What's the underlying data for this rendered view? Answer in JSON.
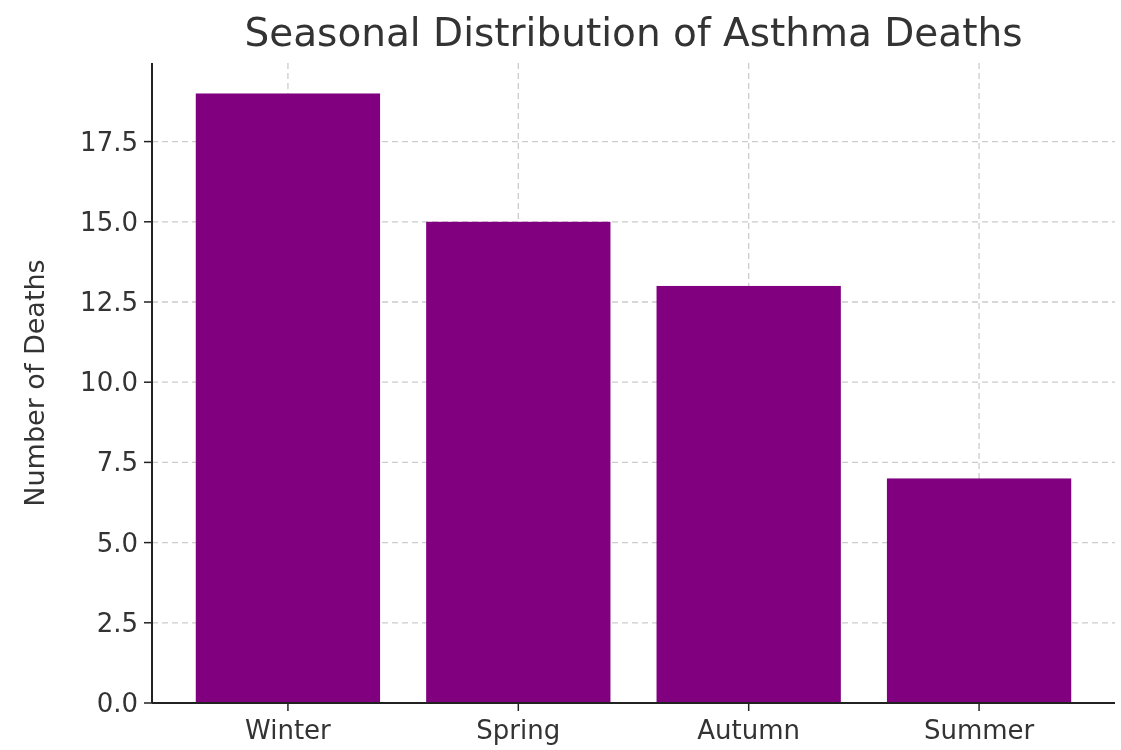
{
  "chart_data": {
    "type": "bar",
    "title": "Seasonal Distribution of Asthma Deaths",
    "ylabel": "Number of Deaths",
    "categories": [
      "Winter",
      "Spring",
      "Autumn",
      "Summer"
    ],
    "values": [
      19,
      15,
      13,
      7
    ],
    "color": "#800080",
    "ylim": [
      0,
      19.95
    ],
    "yticks": [
      {
        "value": 0,
        "label": "0.0"
      },
      {
        "value": 2.5,
        "label": "2.5"
      },
      {
        "value": 5,
        "label": "5.0"
      },
      {
        "value": 7.5,
        "label": "7.5"
      },
      {
        "value": 10,
        "label": "10.0"
      },
      {
        "value": 12.5,
        "label": "12.5"
      },
      {
        "value": 15,
        "label": "15.0"
      },
      {
        "value": 17.5,
        "label": "17.5"
      }
    ],
    "grid": true
  }
}
